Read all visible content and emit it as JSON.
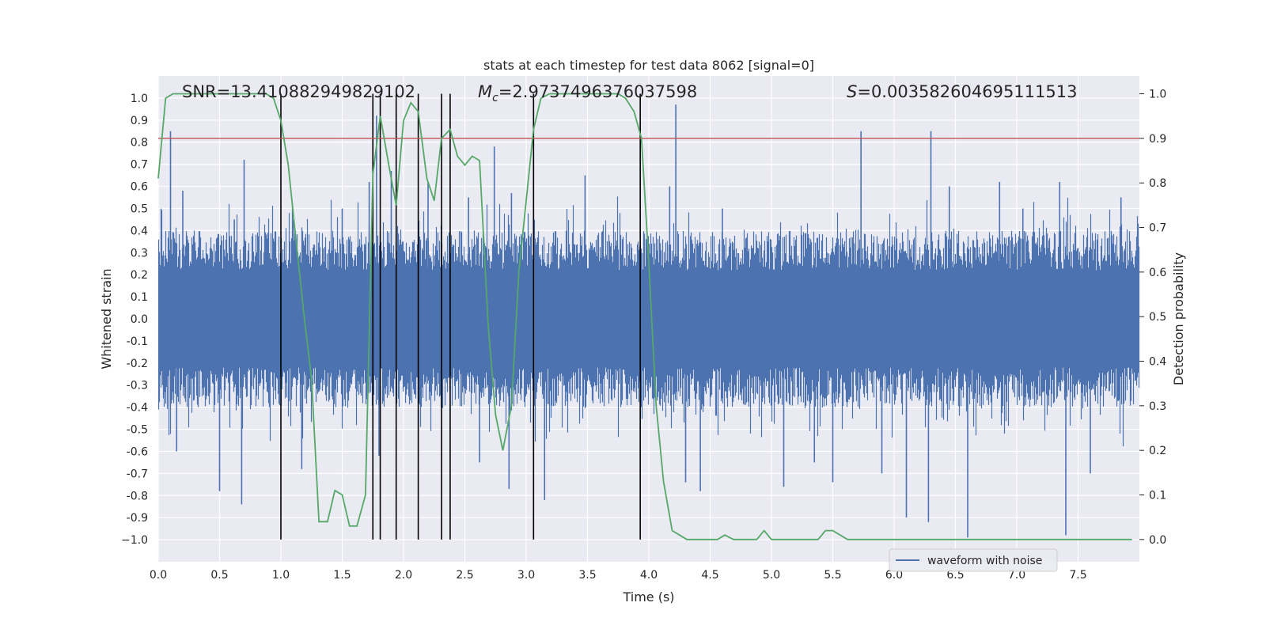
{
  "chart_data": {
    "type": "line",
    "title": "stats at each timestep for test data 8062 [signal=0]",
    "xlabel": "Time (s)",
    "ylabel": "Whitened strain",
    "y2label": "Detection probability",
    "xlim": [
      0.0,
      8.0
    ],
    "ylim": [
      -1.1,
      1.1
    ],
    "y2lim": [
      -0.05,
      1.04
    ],
    "x_ticks": [
      "0.0",
      "0.5",
      "1.0",
      "1.5",
      "2.0",
      "2.5",
      "3.0",
      "3.5",
      "4.0",
      "4.5",
      "5.0",
      "5.5",
      "6.0",
      "6.5",
      "7.0",
      "7.5"
    ],
    "y_ticks": [
      "1.0",
      "0.9",
      "0.8",
      "0.7",
      "0.6",
      "0.5",
      "0.4",
      "0.3",
      "0.2",
      "0.1",
      "0.0",
      "-0.1",
      "-0.2",
      "-0.3",
      "-0.4",
      "-0.5",
      "-0.6",
      "-0.7",
      "-0.8",
      "-0.9",
      "−1.0"
    ],
    "y2_ticks": [
      "1.0",
      "0.9",
      "0.8",
      "0.7",
      "0.6",
      "0.5",
      "0.4",
      "0.3",
      "0.2",
      "0.1",
      "0.0"
    ],
    "annotations": {
      "snr": "SNR=13.410882949829102",
      "mc_symbol": "M",
      "mc_sub": "c",
      "mc_value": "=2.9737496376037598",
      "s_symbol": "S",
      "s_value": "=0.003582604695111513"
    },
    "threshold": 0.9,
    "vertical_lines_x": [
      1.0,
      1.75,
      1.81,
      1.94,
      2.12,
      2.31,
      2.38,
      3.06,
      3.93
    ],
    "legend": {
      "label": "waveform with noise",
      "position": "lower-right"
    },
    "series": [
      {
        "name": "waveform with noise",
        "color": "#4c72b0",
        "envelope": {
          "typical_min": -0.4,
          "typical_max": 0.4,
          "dense_min": -0.22,
          "dense_max": 0.22
        },
        "spikes": [
          [
            0.1,
            0.85
          ],
          [
            0.15,
            -0.6
          ],
          [
            0.2,
            0.58
          ],
          [
            0.5,
            -0.78
          ],
          [
            0.62,
            0.45
          ],
          [
            0.68,
            -0.84
          ],
          [
            0.7,
            0.72
          ],
          [
            1.17,
            -0.68
          ],
          [
            1.1,
            0.45
          ],
          [
            1.5,
            0.5
          ],
          [
            1.72,
            0.62
          ],
          [
            1.78,
            0.92
          ],
          [
            1.8,
            -0.62
          ],
          [
            1.9,
            0.67
          ],
          [
            2.2,
            0.62
          ],
          [
            2.53,
            0.55
          ],
          [
            2.62,
            -0.65
          ],
          [
            2.74,
            0.78
          ],
          [
            2.86,
            -0.77
          ],
          [
            2.88,
            0.57
          ],
          [
            3.15,
            -0.82
          ],
          [
            3.48,
            0.65
          ],
          [
            4.17,
            0.6
          ],
          [
            4.22,
            0.97
          ],
          [
            4.3,
            -0.74
          ],
          [
            4.42,
            -0.78
          ],
          [
            4.6,
            0.5
          ],
          [
            5.1,
            -0.76
          ],
          [
            5.35,
            -0.65
          ],
          [
            5.5,
            -0.74
          ],
          [
            5.73,
            0.85
          ],
          [
            5.9,
            -0.7
          ],
          [
            6.1,
            -0.9
          ],
          [
            6.28,
            -0.92
          ],
          [
            6.3,
            0.85
          ],
          [
            6.45,
            0.6
          ],
          [
            6.6,
            -0.99
          ],
          [
            6.86,
            0.62
          ],
          [
            7.05,
            0.5
          ],
          [
            7.35,
            0.62
          ],
          [
            7.4,
            -0.98
          ],
          [
            7.6,
            -0.7
          ],
          [
            7.85,
            0.55
          ]
        ]
      },
      {
        "name": "detection probability",
        "color": "#55a868",
        "x": [
          0.0,
          0.06,
          0.12,
          0.19,
          0.25,
          0.31,
          0.38,
          0.44,
          0.5,
          0.56,
          0.62,
          0.69,
          0.75,
          0.81,
          0.88,
          0.94,
          1.0,
          1.06,
          1.12,
          1.19,
          1.25,
          1.31,
          1.38,
          1.44,
          1.5,
          1.56,
          1.62,
          1.69,
          1.75,
          1.81,
          1.88,
          1.94,
          2.0,
          2.06,
          2.12,
          2.19,
          2.25,
          2.31,
          2.38,
          2.44,
          2.5,
          2.56,
          2.62,
          2.69,
          2.75,
          2.81,
          2.88,
          2.94,
          3.0,
          3.06,
          3.12,
          3.19,
          3.25,
          3.31,
          3.38,
          3.44,
          3.5,
          3.56,
          3.62,
          3.69,
          3.75,
          3.81,
          3.88,
          3.94,
          4.0,
          4.06,
          4.12,
          4.19,
          4.25,
          4.31,
          4.38,
          4.44,
          4.5,
          4.56,
          4.62,
          4.69,
          4.75,
          4.81,
          4.88,
          4.94,
          5.0,
          5.06,
          5.12,
          5.19,
          5.25,
          5.31,
          5.38,
          5.44,
          5.5,
          5.56,
          5.62,
          5.69,
          5.75,
          5.81,
          5.88,
          5.94,
          6.0,
          6.5,
          7.0,
          7.5,
          7.94
        ],
        "y": [
          0.81,
          0.99,
          1.0,
          1.0,
          1.0,
          1.0,
          1.0,
          1.0,
          1.0,
          1.0,
          1.0,
          1.0,
          1.0,
          1.0,
          1.0,
          0.99,
          0.94,
          0.84,
          0.68,
          0.5,
          0.36,
          0.04,
          0.04,
          0.11,
          0.1,
          0.03,
          0.03,
          0.1,
          0.82,
          0.95,
          0.84,
          0.75,
          0.94,
          0.98,
          0.96,
          0.81,
          0.76,
          0.9,
          0.92,
          0.86,
          0.84,
          0.86,
          0.85,
          0.48,
          0.28,
          0.2,
          0.3,
          0.6,
          0.76,
          0.92,
          0.99,
          1.0,
          1.0,
          1.0,
          1.0,
          1.0,
          1.0,
          1.0,
          1.0,
          1.0,
          1.0,
          0.99,
          0.96,
          0.9,
          0.62,
          0.3,
          0.13,
          0.02,
          0.01,
          0.0,
          0.0,
          0.0,
          0.0,
          0.0,
          0.01,
          0.0,
          0.0,
          0.0,
          0.0,
          0.02,
          0.0,
          0.0,
          0.0,
          0.0,
          0.0,
          0.0,
          0.0,
          0.02,
          0.02,
          0.01,
          0.0,
          0.0,
          0.0,
          0.0,
          0.0,
          0.0,
          0.0,
          0.0,
          0.0,
          0.0,
          0.0
        ]
      }
    ]
  }
}
